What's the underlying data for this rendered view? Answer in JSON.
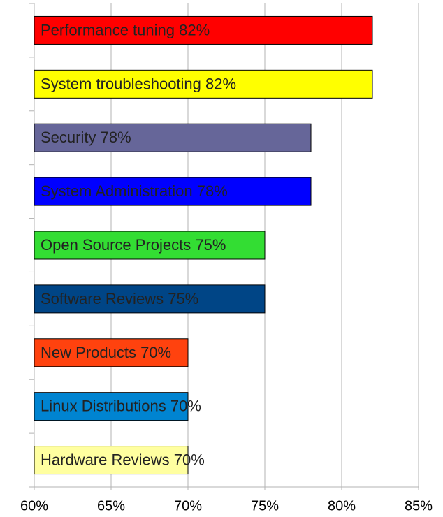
{
  "chart_data": {
    "type": "hbar",
    "categories": [
      "Performance tuning",
      "System troubleshooting",
      "Security",
      "System Administration",
      "Open Source Projects",
      "Software Reviews",
      "New Products",
      "Linux Distributions",
      "Hardware Reviews"
    ],
    "values": [
      82,
      82,
      78,
      78,
      75,
      75,
      70,
      70,
      70
    ],
    "value_labels": [
      "82%",
      "82%",
      "78%",
      "78%",
      "75%",
      "75%",
      "70%",
      "70%",
      "70%"
    ],
    "colors": [
      "#ff0000",
      "#ffff00",
      "#666699",
      "#0000ff",
      "#33dd33",
      "#004586",
      "#ff420e",
      "#0084d1",
      "#ffffa0"
    ],
    "xlim": [
      60,
      85
    ],
    "xticks": [
      {
        "value": 60,
        "label": "60%"
      },
      {
        "value": 65,
        "label": "65%"
      },
      {
        "value": 70,
        "label": "70%"
      },
      {
        "value": 75,
        "label": "75%"
      },
      {
        "value": 80,
        "label": "80%"
      },
      {
        "value": 85,
        "label": "85%"
      }
    ],
    "grid": true
  }
}
